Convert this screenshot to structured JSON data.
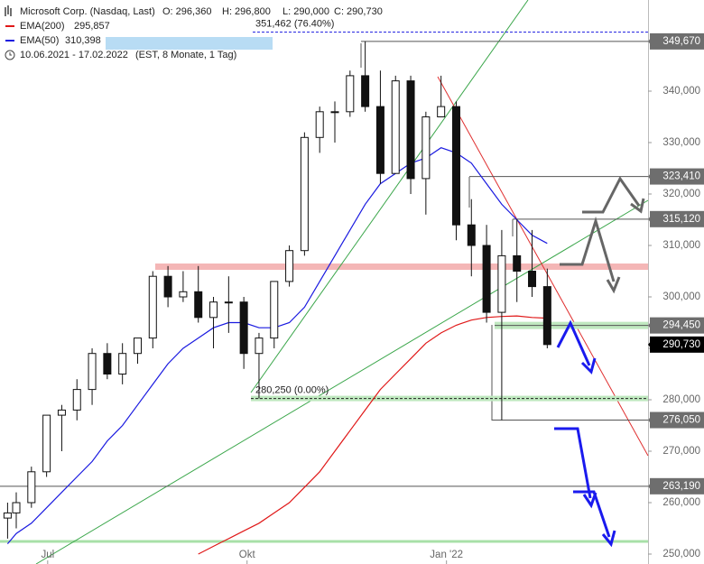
{
  "chart_data": {
    "type": "candlestick",
    "title": "Microsoft Corp. (Nasdaq, Last)",
    "header": {
      "open": "O: 296,360",
      "high": "H: 296,800",
      "low": "L: 290,000",
      "close": "C: 290,730",
      "range": "10.06.2021 - 17.02.2022",
      "info": "(EST, 8 Monate, 1 Tag)"
    },
    "x": [
      "2021-06-10",
      "2021-06-14",
      "2021-06-21",
      "2021-06-28",
      "2021-07-05",
      "2021-07-12",
      "2021-07-19",
      "2021-07-26",
      "2021-08-02",
      "2021-08-09",
      "2021-08-16",
      "2021-08-23",
      "2021-08-30",
      "2021-09-06",
      "2021-09-13",
      "2021-09-20",
      "2021-09-27",
      "2021-10-04",
      "2021-10-11",
      "2021-10-18",
      "2021-10-25",
      "2021-11-01",
      "2021-11-08",
      "2021-11-15",
      "2021-11-22",
      "2021-11-29",
      "2021-12-06",
      "2021-12-13",
      "2021-12-20",
      "2021-12-27",
      "2022-01-03",
      "2022-01-10",
      "2022-01-17",
      "2022-01-24",
      "2022-01-31",
      "2022-02-07",
      "2022-02-14"
    ],
    "open": [
      257000,
      258000,
      260000,
      266000,
      277000,
      278000,
      282000,
      289000,
      285000,
      289000,
      292000,
      304000,
      300000,
      301000,
      296000,
      299000,
      299000,
      289000,
      292000,
      303000,
      309000,
      331000,
      336000,
      336000,
      343000,
      337000,
      324000,
      342000,
      323000,
      335000,
      337000,
      314000,
      310000,
      297000,
      308000,
      305000,
      302000
    ],
    "high": [
      260000,
      262000,
      267000,
      277000,
      279000,
      284000,
      290000,
      291000,
      291000,
      292000,
      305000,
      306000,
      305000,
      306000,
      300000,
      304000,
      300000,
      293000,
      303000,
      310000,
      332000,
      337000,
      338000,
      344000,
      349670,
      344000,
      343000,
      343000,
      336000,
      343000,
      338000,
      319000,
      314000,
      313000,
      315120,
      313000,
      305500
    ],
    "low": [
      253000,
      255000,
      259000,
      265000,
      270000,
      276000,
      279000,
      284000,
      283000,
      287000,
      290000,
      298000,
      299000,
      295000,
      290000,
      293000,
      286000,
      280250,
      290000,
      302000,
      308000,
      328000,
      330000,
      335000,
      336000,
      322000,
      324000,
      320000,
      316000,
      335000,
      311000,
      304000,
      295000,
      276050,
      299000,
      300000,
      290000
    ],
    "close": [
      258000,
      260000,
      266000,
      277000,
      278000,
      282000,
      289000,
      285000,
      289000,
      292000,
      304000,
      300000,
      301000,
      296000,
      299000,
      299000,
      289000,
      292000,
      303000,
      309000,
      331000,
      336000,
      336000,
      343000,
      337000,
      324000,
      342000,
      323000,
      335000,
      337000,
      314000,
      310000,
      297000,
      308000,
      305000,
      302000,
      290730
    ],
    "series": [
      {
        "name": "EMA(200)",
        "color": "#e01818",
        "legend_value": "295,857",
        "values": [
          null,
          null,
          null,
          null,
          null,
          null,
          null,
          null,
          null,
          null,
          null,
          null,
          null,
          250000,
          251500,
          253000,
          254500,
          256000,
          258000,
          260000,
          263000,
          266000,
          270000,
          274000,
          278000,
          282000,
          285000,
          288000,
          291000,
          293000,
          294500,
          295500,
          296000,
          296200,
          296300,
          296000,
          295857
        ]
      },
      {
        "name": "EMA(50)",
        "color": "#1a1ae0",
        "legend_value": "310,398",
        "values": [
          252000,
          254000,
          256000,
          259000,
          262000,
          265000,
          268000,
          272000,
          275000,
          279000,
          283000,
          287000,
          290000,
          292000,
          294000,
          295000,
          295000,
          294000,
          294000,
          295000,
          298000,
          303000,
          308000,
          313000,
          318000,
          322000,
          324000,
          326000,
          327000,
          329000,
          328000,
          326000,
          322000,
          318000,
          315000,
          312000,
          310398
        ]
      }
    ],
    "xlim": [
      "2021-06-09",
      "2022-04-04"
    ],
    "xticks": [
      {
        "value": "2021-07-01",
        "label": "Jul"
      },
      {
        "value": "2021-10-01",
        "label": "Okt"
      },
      {
        "value": "2022-01-01",
        "label": "Jan '22"
      }
    ],
    "ylim": [
      248070,
      357720
    ],
    "yticks": [
      {
        "value": 250000,
        "label": "250,000"
      },
      {
        "value": 260000,
        "label": "260,000"
      },
      {
        "value": 270000,
        "label": "270,000"
      },
      {
        "value": 280000,
        "label": "280,000"
      },
      {
        "value": 290000,
        "label": "290,000"
      },
      {
        "value": 300000,
        "label": "300,000"
      },
      {
        "value": 310000,
        "label": "310,000"
      },
      {
        "value": 320000,
        "label": "320,000"
      },
      {
        "value": 330000,
        "label": "330,000"
      },
      {
        "value": 340000,
        "label": "340,000"
      }
    ],
    "levels": [
      {
        "value": 349670,
        "label": "349,670"
      },
      {
        "value": 323410,
        "label": "323,410"
      },
      {
        "value": 315120,
        "label": "315,120"
      },
      {
        "value": 294450,
        "label": "294,450"
      },
      {
        "value": 276050,
        "label": "276,050"
      },
      {
        "value": 263190,
        "label": "263,190"
      }
    ],
    "annotations": [
      {
        "value": 351462,
        "label": "351,462 (76.40%)"
      },
      {
        "value": 280250,
        "label": "280,250 (0.00%)"
      }
    ],
    "last_price": {
      "value": 290730,
      "label": "290,730"
    },
    "up_color": "#ffffff",
    "down_color": "#111111"
  }
}
